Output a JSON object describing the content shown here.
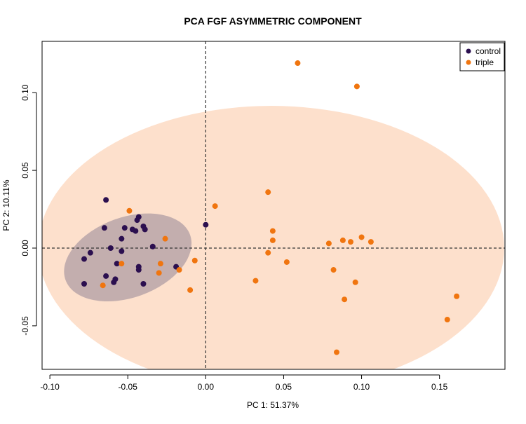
{
  "chart_data": {
    "type": "scatter",
    "title": "PCA FGF ASYMMETRIC COMPONENT",
    "xlabel": "PC 1: 51.37%",
    "ylabel": "PC 2: 10.11%",
    "xlim": [
      -0.105,
      0.192
    ],
    "ylim": [
      -0.078,
      0.133
    ],
    "xticks": [
      -0.1,
      -0.05,
      0.0,
      0.05,
      0.1,
      0.15
    ],
    "xtick_labels": [
      "-0.10",
      "-0.05",
      "0.00",
      "0.05",
      "0.10",
      "0.15"
    ],
    "yticks": [
      -0.05,
      0.0,
      0.05,
      0.1
    ],
    "ytick_labels": [
      "-0.05",
      "0.00",
      "0.05",
      "0.10"
    ],
    "reference_lines": {
      "x": 0,
      "y": 0,
      "style": "dashed"
    },
    "legend_position": "top-right",
    "series": [
      {
        "name": "control",
        "color": "#2b0f4f",
        "ellipse_color": "#b8a4a8",
        "ellipse": {
          "center": [
            -0.05,
            -0.006
          ],
          "rx": 0.0425,
          "ry": 0.0258,
          "angle_deg": 20
        },
        "points": [
          [
            -0.064,
            0.031
          ],
          [
            -0.065,
            0.013
          ],
          [
            -0.052,
            0.013
          ],
          [
            -0.047,
            0.012
          ],
          [
            -0.045,
            0.011
          ],
          [
            -0.044,
            0.018
          ],
          [
            -0.043,
            0.02
          ],
          [
            -0.04,
            0.014
          ],
          [
            -0.039,
            0.012
          ],
          [
            -0.054,
            0.006
          ],
          [
            -0.061,
            0.0
          ],
          [
            -0.054,
            -0.002
          ],
          [
            -0.074,
            -0.003
          ],
          [
            -0.078,
            -0.007
          ],
          [
            -0.034,
            0.001
          ],
          [
            -0.057,
            -0.01
          ],
          [
            -0.043,
            -0.012
          ],
          [
            -0.043,
            -0.014
          ],
          [
            -0.019,
            -0.012
          ],
          [
            -0.064,
            -0.018
          ],
          [
            -0.058,
            -0.02
          ],
          [
            -0.059,
            -0.022
          ],
          [
            -0.078,
            -0.023
          ],
          [
            -0.04,
            -0.023
          ],
          [
            0.0,
            0.015
          ]
        ]
      },
      {
        "name": "triple",
        "color": "#f0750f",
        "ellipse_color": "#fde0cc",
        "ellipse": {
          "center": [
            0.042,
            0.0
          ],
          "rx": 0.1495,
          "ry": 0.0915,
          "angle_deg": 0
        },
        "points": [
          [
            0.059,
            0.119
          ],
          [
            0.097,
            0.104
          ],
          [
            0.04,
            0.036
          ],
          [
            0.006,
            0.027
          ],
          [
            -0.049,
            0.024
          ],
          [
            0.043,
            0.011
          ],
          [
            0.1,
            0.007
          ],
          [
            -0.026,
            0.006
          ],
          [
            0.043,
            0.005
          ],
          [
            0.088,
            0.005
          ],
          [
            0.093,
            0.004
          ],
          [
            0.106,
            0.004
          ],
          [
            0.079,
            0.003
          ],
          [
            0.04,
            -0.003
          ],
          [
            -0.007,
            -0.008
          ],
          [
            0.052,
            -0.009
          ],
          [
            -0.054,
            -0.01
          ],
          [
            -0.029,
            -0.01
          ],
          [
            -0.017,
            -0.014
          ],
          [
            0.082,
            -0.014
          ],
          [
            -0.03,
            -0.016
          ],
          [
            0.032,
            -0.021
          ],
          [
            0.096,
            -0.022
          ],
          [
            -0.066,
            -0.024
          ],
          [
            -0.01,
            -0.027
          ],
          [
            0.089,
            -0.033
          ],
          [
            0.161,
            -0.031
          ],
          [
            0.155,
            -0.046
          ],
          [
            0.084,
            -0.067
          ]
        ]
      }
    ]
  }
}
